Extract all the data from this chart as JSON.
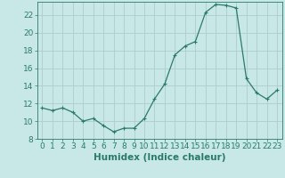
{
  "x": [
    0,
    1,
    2,
    3,
    4,
    5,
    6,
    7,
    8,
    9,
    10,
    11,
    12,
    13,
    14,
    15,
    16,
    17,
    18,
    19,
    20,
    21,
    22,
    23
  ],
  "y": [
    11.5,
    11.2,
    11.5,
    11.0,
    10.0,
    10.3,
    9.5,
    8.8,
    9.2,
    9.2,
    10.3,
    12.5,
    14.2,
    17.5,
    18.5,
    19.0,
    22.3,
    23.2,
    23.1,
    22.8,
    14.8,
    13.2,
    12.5,
    13.5
  ],
  "line_color": "#2a7a6a",
  "marker": "+",
  "marker_size": 3,
  "marker_lw": 0.8,
  "line_width": 0.9,
  "bg_color": "#c8e8e8",
  "plot_bg_color": "#c8e8e8",
  "grid_color": "#b0cccc",
  "tick_color": "#2a7a6a",
  "label_color": "#2a7a6a",
  "xlabel": "Humidex (Indice chaleur)",
  "xlim": [
    -0.5,
    23.5
  ],
  "ylim": [
    8,
    23.5
  ],
  "yticks": [
    8,
    10,
    12,
    14,
    16,
    18,
    20,
    22
  ],
  "xticks": [
    0,
    1,
    2,
    3,
    4,
    5,
    6,
    7,
    8,
    9,
    10,
    11,
    12,
    13,
    14,
    15,
    16,
    17,
    18,
    19,
    20,
    21,
    22,
    23
  ],
  "tick_fontsize": 6.5,
  "xlabel_fontsize": 7.5
}
